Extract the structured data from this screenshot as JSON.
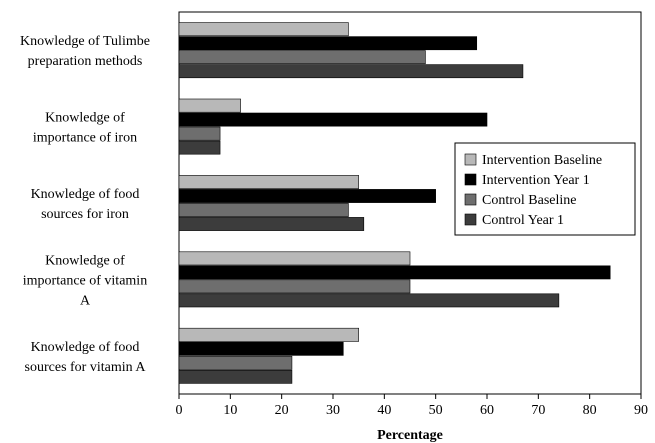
{
  "chart_data": {
    "type": "bar",
    "orientation": "horizontal",
    "categories": [
      "Knowledge of Tulimbe preparation methods",
      "Knowledge of importance of iron",
      "Knowledge of food sources for iron",
      "Knowledge of importance of vitamin A",
      "Knowledge of food sources for vitamin A"
    ],
    "category_label_lines": [
      [
        "Knowledge of Tulimbe",
        "preparation methods"
      ],
      [
        "Knowledge of",
        "importance of iron"
      ],
      [
        "Knowledge of food",
        "sources for iron"
      ],
      [
        "Knowledge of",
        "importance of vitamin",
        "A"
      ],
      [
        "Knowledge of food",
        "sources for vitamin A"
      ]
    ],
    "series": [
      {
        "name": "Intervention Baseline",
        "color": "#b8b8b8",
        "values": [
          33,
          12,
          35,
          45,
          35
        ]
      },
      {
        "name": "Intervention Year 1",
        "color": "#000000",
        "values": [
          58,
          60,
          50,
          84,
          32
        ]
      },
      {
        "name": "Control Baseline",
        "color": "#6e6e6e",
        "values": [
          48,
          8,
          33,
          45,
          22
        ]
      },
      {
        "name": "Control Year 1",
        "color": "#3c3c3c",
        "values": [
          67,
          8,
          36,
          74,
          22
        ]
      }
    ],
    "xlabel": "Percentage",
    "xlim": [
      0,
      90
    ],
    "xticks": [
      0,
      10,
      20,
      30,
      40,
      50,
      60,
      70,
      80,
      90
    ],
    "grid": false,
    "legend_position": "right"
  }
}
